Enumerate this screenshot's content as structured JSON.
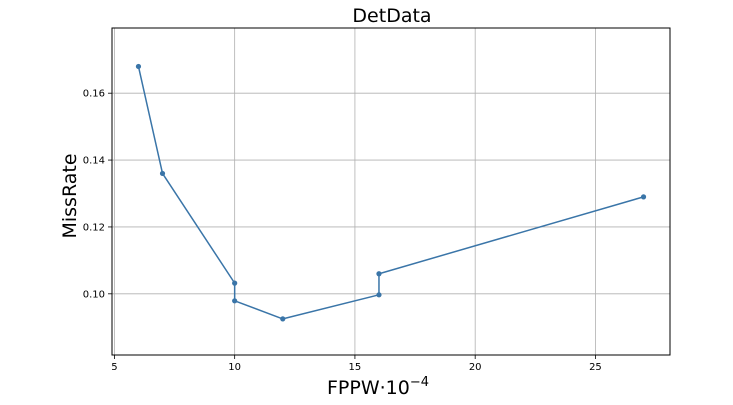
{
  "chart_data": {
    "type": "line",
    "title": "DetData",
    "xlabel": "FPPW·10",
    "xlabel_exponent": "−4",
    "ylabel": "MissRate",
    "xlim": [
      4.9,
      28.1
    ],
    "ylim": [
      0.0817,
      0.1795
    ],
    "xticks": [
      5,
      10,
      15,
      20,
      25
    ],
    "xtick_labels": [
      "5",
      "10",
      "15",
      "20",
      "25"
    ],
    "yticks": [
      0.1,
      0.12,
      0.14,
      0.16
    ],
    "ytick_labels": [
      "0.10",
      "0.12",
      "0.14",
      "0.16"
    ],
    "grid": true,
    "series": [
      {
        "color": "#3a75a8",
        "marker": "circle",
        "points": [
          {
            "x": 6,
            "y": 0.168
          },
          {
            "x": 7,
            "y": 0.136
          },
          {
            "x": 10,
            "y": 0.1032
          },
          {
            "x": 10,
            "y": 0.0979
          },
          {
            "x": 12,
            "y": 0.0925
          },
          {
            "x": 16,
            "y": 0.0997
          },
          {
            "x": 16,
            "y": 0.106
          },
          {
            "x": 27,
            "y": 0.129
          }
        ]
      }
    ]
  }
}
